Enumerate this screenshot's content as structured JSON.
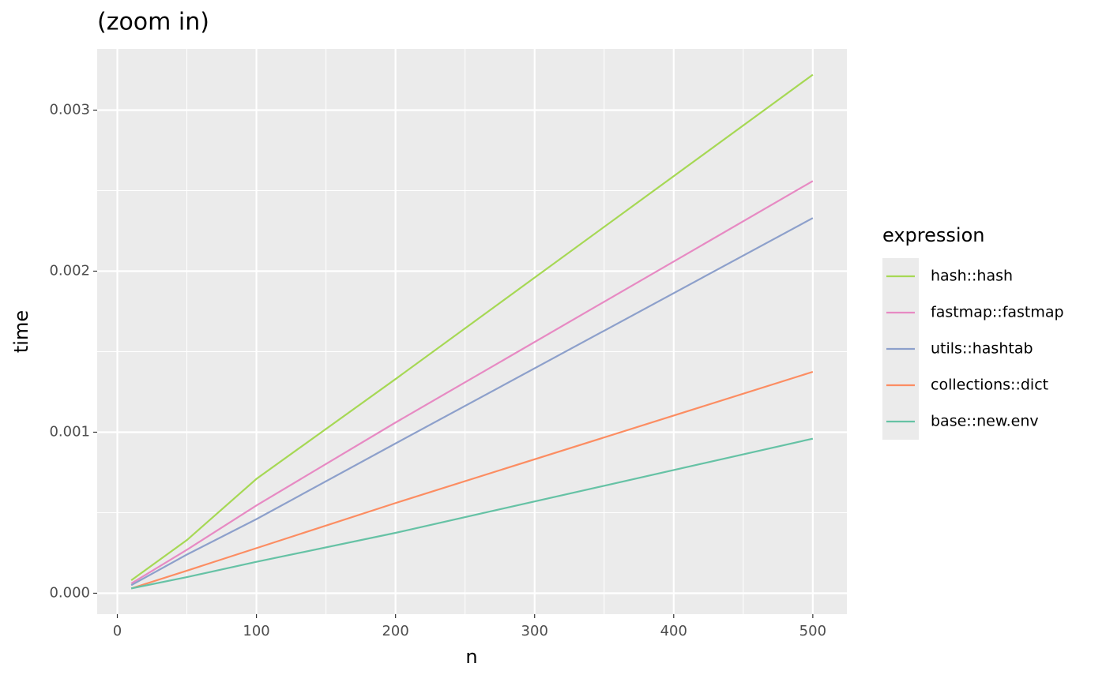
{
  "chart_data": {
    "type": "line",
    "title": "(zoom in)",
    "x_label": "n",
    "y_label": "time",
    "legend_title": "expression",
    "legend_position": "right",
    "grid": true,
    "x": [
      10,
      50,
      100,
      200,
      500
    ],
    "xlim": [
      -14.5,
      524.5
    ],
    "xticks": [
      0,
      100,
      200,
      300,
      400,
      500
    ],
    "x_minor_ticks": [
      50,
      150,
      250,
      350,
      450
    ],
    "ylim": [
      -0.00013,
      0.00338
    ],
    "yticks": [
      {
        "value": 0,
        "label": "0.000"
      },
      0.001,
      0.002,
      0.003
    ],
    "y_minor_ticks": [
      0.0005,
      0.0015,
      0.0025
    ],
    "series": [
      {
        "name": "hash::hash",
        "color": "#a6d854",
        "values": [
          8e-05,
          0.00033,
          0.00071,
          0.00133,
          0.00322
        ]
      },
      {
        "name": "fastmap::fastmap",
        "color": "#e78ac3",
        "values": [
          6e-05,
          0.00027,
          0.000545,
          0.00106,
          0.00256
        ]
      },
      {
        "name": "utils::hashtab",
        "color": "#8da0cb",
        "values": [
          5e-05,
          0.00024,
          0.00046,
          0.00093,
          0.00233
        ]
      },
      {
        "name": "collections::dict",
        "color": "#fc8d62",
        "values": [
          3e-05,
          0.00014,
          0.00028,
          0.00056,
          0.001375
        ]
      },
      {
        "name": "base::new.env",
        "color": "#66c2a5",
        "values": [
          3e-05,
          0.0001,
          0.000195,
          0.000375,
          0.00096
        ]
      }
    ]
  }
}
